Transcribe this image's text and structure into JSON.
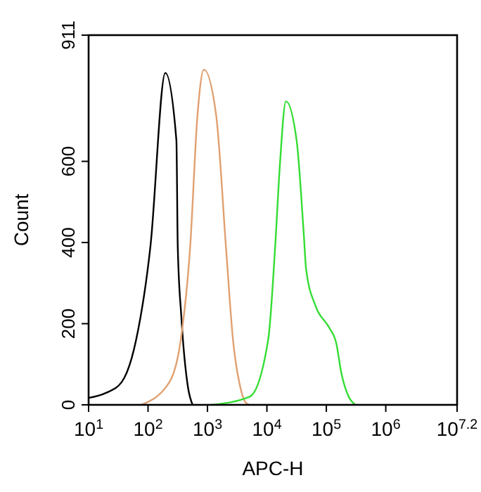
{
  "chart_data": {
    "type": "line",
    "xlabel": "APC-H",
    "ylabel": "Count",
    "log": "x",
    "grid": false,
    "marker": "none",
    "line_style": "solid",
    "xlim": [
      10,
      15848932
    ],
    "ylim": [
      0,
      911
    ],
    "xticks": [
      {
        "value": 10,
        "label": "10$^{1}$"
      },
      {
        "value": 100,
        "label": "10$^{2}$"
      },
      {
        "value": 1000,
        "label": "10$^{3}$"
      },
      {
        "value": 10000,
        "label": "10$^{4}$"
      },
      {
        "value": 100000,
        "label": "10$^{5}$"
      },
      {
        "value": 1000000,
        "label": "10$^{6}$"
      },
      {
        "value": 15848932,
        "label": "10$^{7.2}$"
      }
    ],
    "yticks": [
      0,
      200,
      400,
      600,
      911
    ],
    "series": [
      {
        "color": "#000000",
        "x": [
          10,
          20,
          36,
          63,
          110,
          195,
          300,
          316,
          363,
          468,
          562
        ],
        "values": [
          17,
          30,
          56,
          160,
          392,
          818,
          652,
          392,
          218,
          45,
          0
        ]
      },
      {
        "color": "#e0a070",
        "x": [
          76,
          229,
          355,
          513,
          676,
          871,
          1410,
          2040,
          2690,
          3550,
          4270,
          5000
        ],
        "values": [
          0,
          56,
          160,
          392,
          710,
          826,
          710,
          392,
          160,
          45,
          8,
          0
        ]
      },
      {
        "color": "#33dd33",
        "x": [
          1170,
          5130,
          10500,
          13800,
          16600,
          20900,
          31600,
          41700,
          45700,
          66100,
          112000,
          148000,
          178000,
          234000,
          309000
        ],
        "values": [
          0,
          20,
          160,
          392,
          595,
          748,
          652,
          421,
          334,
          243,
          190,
          150,
          80,
          22,
          0
        ]
      }
    ]
  }
}
